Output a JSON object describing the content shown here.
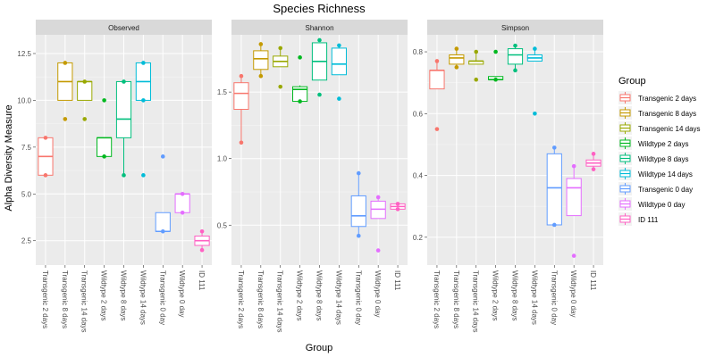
{
  "chart_data": {
    "type": "boxplot",
    "title": "Species Richness",
    "xlabel": "Group",
    "ylabel": "Alpha Diversity Measure",
    "categories": [
      "Transgenic 2 days",
      "Transgenic 8 days",
      "Transgenic 14 days",
      "Wildtype 2 days",
      "Wildtype 8 days",
      "Wildtype 14 days",
      "Transgenic 0 day",
      "Wildtype 0 day",
      "ID 111"
    ],
    "colors": [
      "#F8766D",
      "#C49A00",
      "#99A800",
      "#00B81F",
      "#00BF7D",
      "#00BCD8",
      "#619CFF",
      "#E46EFF",
      "#FF61C3"
    ],
    "legend": {
      "title": "Group",
      "position": "right",
      "entries": [
        "Transgenic 2 days",
        "Transgenic 8 days",
        "Transgenic 14 days",
        "Wildtype 2 days",
        "Wildtype 8 days",
        "Wildtype 14 days",
        "Transgenic 0 day",
        "Wildtype 0 day",
        "ID 111"
      ]
    },
    "grid": true,
    "panels": [
      {
        "name": "Observed",
        "ylim": [
          1.2,
          13.5
        ],
        "yticks": [
          2.5,
          5.0,
          7.5,
          10.0,
          12.5
        ],
        "ytick_labels": [
          "2.5",
          "5.0",
          "7.5",
          "10.0",
          "12.5"
        ],
        "boxes": [
          {
            "whisker_low": 6,
            "q1": 6,
            "median": 7,
            "q3": 8,
            "whisker_high": 8,
            "points": [
              6,
              8
            ]
          },
          {
            "whisker_low": 10,
            "q1": 10,
            "median": 11,
            "q3": 12,
            "whisker_high": 12,
            "points": [
              9,
              12
            ]
          },
          {
            "whisker_low": 10,
            "q1": 10,
            "median": 11,
            "q3": 11,
            "whisker_high": 11,
            "points": [
              9,
              11
            ]
          },
          {
            "whisker_low": 7,
            "q1": 7,
            "median": 8,
            "q3": 8,
            "whisker_high": 8,
            "points": [
              7,
              10
            ]
          },
          {
            "whisker_low": 6,
            "q1": 8,
            "median": 9,
            "q3": 11,
            "whisker_high": 11,
            "points": [
              6,
              11
            ]
          },
          {
            "whisker_low": 10,
            "q1": 10,
            "median": 11,
            "q3": 12,
            "whisker_high": 12,
            "points": [
              6,
              10,
              12
            ]
          },
          {
            "whisker_low": 3,
            "q1": 3,
            "median": 3,
            "q3": 4,
            "whisker_high": 4,
            "points": [
              3,
              7
            ]
          },
          {
            "whisker_low": 4,
            "q1": 4,
            "median": 5,
            "q3": 5,
            "whisker_high": 5,
            "points": [
              4,
              5
            ]
          },
          {
            "whisker_low": 2,
            "q1": 2.25,
            "median": 2.5,
            "q3": 2.75,
            "whisker_high": 3,
            "points": [
              2,
              3
            ]
          }
        ]
      },
      {
        "name": "Shannon",
        "ylim": [
          0.2,
          1.93
        ],
        "yticks": [
          0.5,
          1.0,
          1.5
        ],
        "ytick_labels": [
          "0.5",
          "1.0",
          "1.5"
        ],
        "boxes": [
          {
            "whisker_low": 1.12,
            "q1": 1.37,
            "median": 1.49,
            "q3": 1.57,
            "whisker_high": 1.62,
            "points": [
              1.12,
              1.62
            ]
          },
          {
            "whisker_low": 1.62,
            "q1": 1.67,
            "median": 1.75,
            "q3": 1.81,
            "whisker_high": 1.86,
            "points": [
              1.62,
              1.86
            ]
          },
          {
            "whisker_low": 1.69,
            "q1": 1.69,
            "median": 1.73,
            "q3": 1.77,
            "whisker_high": 1.83,
            "points": [
              1.54,
              1.83
            ]
          },
          {
            "whisker_low": 1.43,
            "q1": 1.43,
            "median": 1.52,
            "q3": 1.54,
            "whisker_high": 1.55,
            "points": [
              1.43,
              1.76
            ]
          },
          {
            "whisker_low": 1.59,
            "q1": 1.59,
            "median": 1.73,
            "q3": 1.87,
            "whisker_high": 1.87,
            "points": [
              1.48,
              1.89
            ]
          },
          {
            "whisker_low": 1.63,
            "q1": 1.63,
            "median": 1.71,
            "q3": 1.83,
            "whisker_high": 1.85,
            "points": [
              1.45,
              1.85
            ]
          },
          {
            "whisker_low": 0.42,
            "q1": 0.49,
            "median": 0.57,
            "q3": 0.72,
            "whisker_high": 0.89,
            "points": [
              0.42,
              0.89
            ]
          },
          {
            "whisker_low": 0.55,
            "q1": 0.55,
            "median": 0.62,
            "q3": 0.68,
            "whisker_high": 0.71,
            "points": [
              0.31,
              0.71
            ]
          },
          {
            "whisker_low": 0.62,
            "q1": 0.62,
            "median": 0.64,
            "q3": 0.66,
            "whisker_high": 0.66,
            "points": [
              0.62,
              0.66
            ]
          }
        ]
      },
      {
        "name": "Simpson",
        "ylim": [
          0.11,
          0.855
        ],
        "yticks": [
          0.2,
          0.4,
          0.6,
          0.8
        ],
        "ytick_labels": [
          "0.2",
          "0.4",
          "0.6",
          "0.8"
        ],
        "boxes": [
          {
            "whisker_low": 0.68,
            "q1": 0.68,
            "median": 0.74,
            "q3": 0.74,
            "whisker_high": 0.77,
            "points": [
              0.55,
              0.77
            ]
          },
          {
            "whisker_low": 0.75,
            "q1": 0.76,
            "median": 0.78,
            "q3": 0.79,
            "whisker_high": 0.81,
            "points": [
              0.75,
              0.81
            ]
          },
          {
            "whisker_low": 0.76,
            "q1": 0.76,
            "median": 0.77,
            "q3": 0.77,
            "whisker_high": 0.8,
            "points": [
              0.71,
              0.8
            ]
          },
          {
            "whisker_low": 0.71,
            "q1": 0.71,
            "median": 0.71,
            "q3": 0.72,
            "whisker_high": 0.72,
            "points": [
              0.71,
              0.8
            ]
          },
          {
            "whisker_low": 0.74,
            "q1": 0.76,
            "median": 0.79,
            "q3": 0.81,
            "whisker_high": 0.82,
            "points": [
              0.74,
              0.82
            ]
          },
          {
            "whisker_low": 0.77,
            "q1": 0.77,
            "median": 0.78,
            "q3": 0.79,
            "whisker_high": 0.81,
            "points": [
              0.6,
              0.81
            ]
          },
          {
            "whisker_low": 0.24,
            "q1": 0.24,
            "median": 0.36,
            "q3": 0.47,
            "whisker_high": 0.49,
            "points": [
              0.24,
              0.49
            ]
          },
          {
            "whisker_low": 0.27,
            "q1": 0.27,
            "median": 0.36,
            "q3": 0.39,
            "whisker_high": 0.43,
            "points": [
              0.14,
              0.43
            ]
          },
          {
            "whisker_low": 0.42,
            "q1": 0.43,
            "median": 0.44,
            "q3": 0.45,
            "whisker_high": 0.47,
            "points": [
              0.42,
              0.47
            ]
          }
        ]
      }
    ]
  }
}
